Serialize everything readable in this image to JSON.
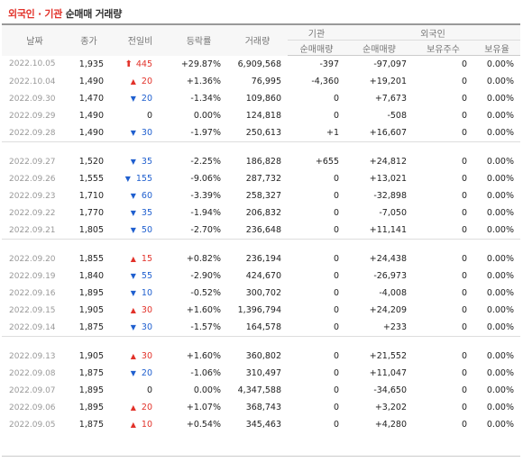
{
  "title": {
    "part1": "외국인 · 기관",
    "part2": " 순매매 거래량"
  },
  "headers": {
    "date": "날짜",
    "close": "종가",
    "change": "전일비",
    "rate": "등락률",
    "volume": "거래량",
    "institution": "기관",
    "foreign": "외국인",
    "inst_net": "순매매량",
    "foreign_net": "순매매량",
    "foreign_hold": "보유주수",
    "foreign_ratio": "보유율"
  },
  "groups": [
    [
      {
        "date": "2022.10.05",
        "close": "1,935",
        "dir": "upper",
        "change": "445",
        "rate": "+29.87%",
        "volume": "6,909,568",
        "inst": "-397",
        "foreign": "-97,097",
        "hold": "0",
        "ratio": "0.00%"
      },
      {
        "date": "2022.10.04",
        "close": "1,490",
        "dir": "up",
        "change": "20",
        "rate": "+1.36%",
        "volume": "76,995",
        "inst": "-4,360",
        "foreign": "+19,201",
        "hold": "0",
        "ratio": "0.00%"
      },
      {
        "date": "2022.09.30",
        "close": "1,470",
        "dir": "down",
        "change": "20",
        "rate": "-1.34%",
        "volume": "109,860",
        "inst": "0",
        "foreign": "+7,673",
        "hold": "0",
        "ratio": "0.00%"
      },
      {
        "date": "2022.09.29",
        "close": "1,490",
        "dir": "none",
        "change": "0",
        "rate": "0.00%",
        "volume": "124,818",
        "inst": "0",
        "foreign": "-508",
        "hold": "0",
        "ratio": "0.00%"
      },
      {
        "date": "2022.09.28",
        "close": "1,490",
        "dir": "down",
        "change": "30",
        "rate": "-1.97%",
        "volume": "250,613",
        "inst": "+1",
        "foreign": "+16,607",
        "hold": "0",
        "ratio": "0.00%"
      }
    ],
    [
      {
        "date": "2022.09.27",
        "close": "1,520",
        "dir": "down",
        "change": "35",
        "rate": "-2.25%",
        "volume": "186,828",
        "inst": "+655",
        "foreign": "+24,812",
        "hold": "0",
        "ratio": "0.00%"
      },
      {
        "date": "2022.09.26",
        "close": "1,555",
        "dir": "down",
        "change": "155",
        "rate": "-9.06%",
        "volume": "287,732",
        "inst": "0",
        "foreign": "+13,021",
        "hold": "0",
        "ratio": "0.00%"
      },
      {
        "date": "2022.09.23",
        "close": "1,710",
        "dir": "down",
        "change": "60",
        "rate": "-3.39%",
        "volume": "258,327",
        "inst": "0",
        "foreign": "-32,898",
        "hold": "0",
        "ratio": "0.00%"
      },
      {
        "date": "2022.09.22",
        "close": "1,770",
        "dir": "down",
        "change": "35",
        "rate": "-1.94%",
        "volume": "206,832",
        "inst": "0",
        "foreign": "-7,050",
        "hold": "0",
        "ratio": "0.00%"
      },
      {
        "date": "2022.09.21",
        "close": "1,805",
        "dir": "down",
        "change": "50",
        "rate": "-2.70%",
        "volume": "236,648",
        "inst": "0",
        "foreign": "+11,141",
        "hold": "0",
        "ratio": "0.00%"
      }
    ],
    [
      {
        "date": "2022.09.20",
        "close": "1,855",
        "dir": "up",
        "change": "15",
        "rate": "+0.82%",
        "volume": "236,194",
        "inst": "0",
        "foreign": "+24,438",
        "hold": "0",
        "ratio": "0.00%"
      },
      {
        "date": "2022.09.19",
        "close": "1,840",
        "dir": "down",
        "change": "55",
        "rate": "-2.90%",
        "volume": "424,670",
        "inst": "0",
        "foreign": "-26,973",
        "hold": "0",
        "ratio": "0.00%"
      },
      {
        "date": "2022.09.16",
        "close": "1,895",
        "dir": "down",
        "change": "10",
        "rate": "-0.52%",
        "volume": "300,702",
        "inst": "0",
        "foreign": "-4,008",
        "hold": "0",
        "ratio": "0.00%"
      },
      {
        "date": "2022.09.15",
        "close": "1,905",
        "dir": "up",
        "change": "30",
        "rate": "+1.60%",
        "volume": "1,396,794",
        "inst": "0",
        "foreign": "+24,209",
        "hold": "0",
        "ratio": "0.00%"
      },
      {
        "date": "2022.09.14",
        "close": "1,875",
        "dir": "down",
        "change": "30",
        "rate": "-1.57%",
        "volume": "164,578",
        "inst": "0",
        "foreign": "+233",
        "hold": "0",
        "ratio": "0.00%"
      }
    ],
    [
      {
        "date": "2022.09.13",
        "close": "1,905",
        "dir": "up",
        "change": "30",
        "rate": "+1.60%",
        "volume": "360,802",
        "inst": "0",
        "foreign": "+21,552",
        "hold": "0",
        "ratio": "0.00%"
      },
      {
        "date": "2022.09.08",
        "close": "1,875",
        "dir": "down",
        "change": "20",
        "rate": "-1.06%",
        "volume": "310,497",
        "inst": "0",
        "foreign": "+11,047",
        "hold": "0",
        "ratio": "0.00%"
      },
      {
        "date": "2022.09.07",
        "close": "1,895",
        "dir": "none",
        "change": "0",
        "rate": "0.00%",
        "volume": "4,347,588",
        "inst": "0",
        "foreign": "-34,650",
        "hold": "0",
        "ratio": "0.00%"
      },
      {
        "date": "2022.09.06",
        "close": "1,895",
        "dir": "up",
        "change": "20",
        "rate": "+1.07%",
        "volume": "368,743",
        "inst": "0",
        "foreign": "+3,202",
        "hold": "0",
        "ratio": "0.00%"
      },
      {
        "date": "2022.09.05",
        "close": "1,875",
        "dir": "up",
        "change": "10",
        "rate": "+0.54%",
        "volume": "345,463",
        "inst": "0",
        "foreign": "+4,280",
        "hold": "0",
        "ratio": "0.00%"
      }
    ]
  ],
  "colors": {
    "up": "#e2322a",
    "down": "#1f5fcf",
    "neutral": "#222222"
  },
  "icons": {
    "upper": "upper-limit-arrow-icon",
    "up": "up-triangle-icon",
    "down": "down-triangle-icon"
  }
}
